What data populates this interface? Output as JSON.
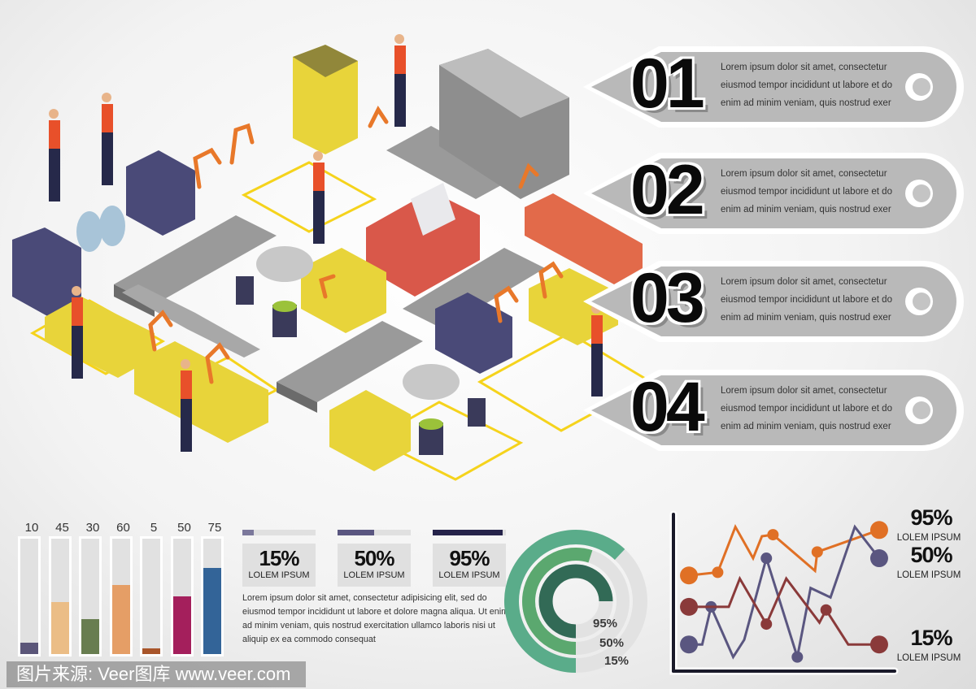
{
  "steps": [
    {
      "number": "01",
      "lines": [
        "Lorem ipsum dolor sit amet, consectetur",
        "eiusmod tempor incididunt ut labore et do",
        "enim ad minim veniam, quis nostrud exer"
      ]
    },
    {
      "number": "02",
      "lines": [
        "Lorem ipsum dolor sit amet, consectetur",
        "eiusmod tempor incididunt ut labore et do",
        "enim ad minim veniam, quis nostrud exer"
      ]
    },
    {
      "number": "03",
      "lines": [
        "Lorem ipsum dolor sit amet, consectetur",
        "eiusmod tempor incididunt ut labore et do",
        "enim ad minim veniam, quis nostrud exer"
      ]
    },
    {
      "number": "04",
      "lines": [
        "Lorem ipsum dolor sit amet, consectetur",
        "eiusmod tempor incididunt ut labore et do",
        "enim ad minim veniam, quis nostrud exer"
      ]
    }
  ],
  "chart_data": [
    {
      "type": "bar",
      "categories": [
        "10",
        "45",
        "30",
        "60",
        "5",
        "50",
        "75"
      ],
      "values": [
        10,
        45,
        30,
        60,
        5,
        50,
        75
      ],
      "ylim": [
        0,
        100
      ],
      "colors": [
        "#5b5679",
        "#ebbd86",
        "#687d50",
        "#e59e66",
        "#a8552a",
        "#a41f5c",
        "#336498"
      ]
    },
    {
      "type": "bar",
      "orientation": "horizontal-progress",
      "items": [
        {
          "value": 15,
          "label": "15%",
          "caption": "LOLEM IPSUM",
          "color": "#7b789b"
        },
        {
          "value": 50,
          "label": "50%",
          "caption": "LOLEM IPSUM",
          "color": "#5a5680"
        },
        {
          "value": 95,
          "label": "95%",
          "caption": "LOLEM IPSUM",
          "color": "#25234a"
        }
      ]
    },
    {
      "type": "pie",
      "style": "concentric-rings",
      "rings": [
        {
          "label": "95%",
          "value": 95,
          "color": "#326a56"
        },
        {
          "label": "50%",
          "value": 50,
          "color": "#5ba86f"
        },
        {
          "label": "15%",
          "value": 15,
          "color": "#5aac8a"
        }
      ]
    },
    {
      "type": "line",
      "grid": false,
      "xlim": [
        0,
        100
      ],
      "ylim": [
        0,
        100
      ],
      "series": [
        {
          "color": "#e07025",
          "end_label": "95%",
          "end_caption": "LOLEM IPSUM",
          "points": [
            [
              7,
              61
            ],
            [
              20,
              63
            ],
            [
              28,
              92
            ],
            [
              36,
              72
            ],
            [
              40,
              86
            ],
            [
              45,
              87
            ],
            [
              64,
              64
            ],
            [
              65,
              76
            ],
            [
              93,
              90
            ]
          ],
          "markers": [
            0,
            1,
            5,
            7,
            8
          ]
        },
        {
          "color": "#5a5680",
          "end_label": "50%",
          "end_caption": "LOLEM IPSUM",
          "points": [
            [
              7,
              17
            ],
            [
              13,
              17
            ],
            [
              17,
              41
            ],
            [
              27,
              9
            ],
            [
              32,
              20
            ],
            [
              42,
              72
            ],
            [
              56,
              9
            ],
            [
              62,
              53
            ],
            [
              71,
              47
            ],
            [
              82,
              92
            ],
            [
              93,
              72
            ]
          ],
          "markers": [
            0,
            2,
            5,
            6,
            10
          ]
        },
        {
          "color": "#8a3a3a",
          "end_label": "15%",
          "end_caption": "LOLEM IPSUM",
          "points": [
            [
              7,
              41
            ],
            [
              25,
              41
            ],
            [
              30,
              59
            ],
            [
              42,
              30
            ],
            [
              51,
              59
            ],
            [
              66,
              31
            ],
            [
              69,
              39
            ],
            [
              79,
              17
            ],
            [
              93,
              17
            ]
          ],
          "markers": [
            0,
            3,
            6,
            8
          ]
        }
      ]
    }
  ],
  "paragraph": "Lorem ipsum dolor sit amet, consectetur adipisicing elit, sed do eiusmod tempor incididunt ut labore et dolore magna aliqua. Ut enim ad minim veniam, quis nostrud exercitation ullamco laboris nisi ut aliquip ex ea commodo consequat",
  "watermark": "图片来源: Veer图库 www.veer.com",
  "colors": {
    "floor_marking": "#f5d31c",
    "machine_yellow": "#e8d43a",
    "machine_purple": "#4a4a78",
    "robot_arm": "#e8782a",
    "worker_vest": "#e8502a"
  }
}
